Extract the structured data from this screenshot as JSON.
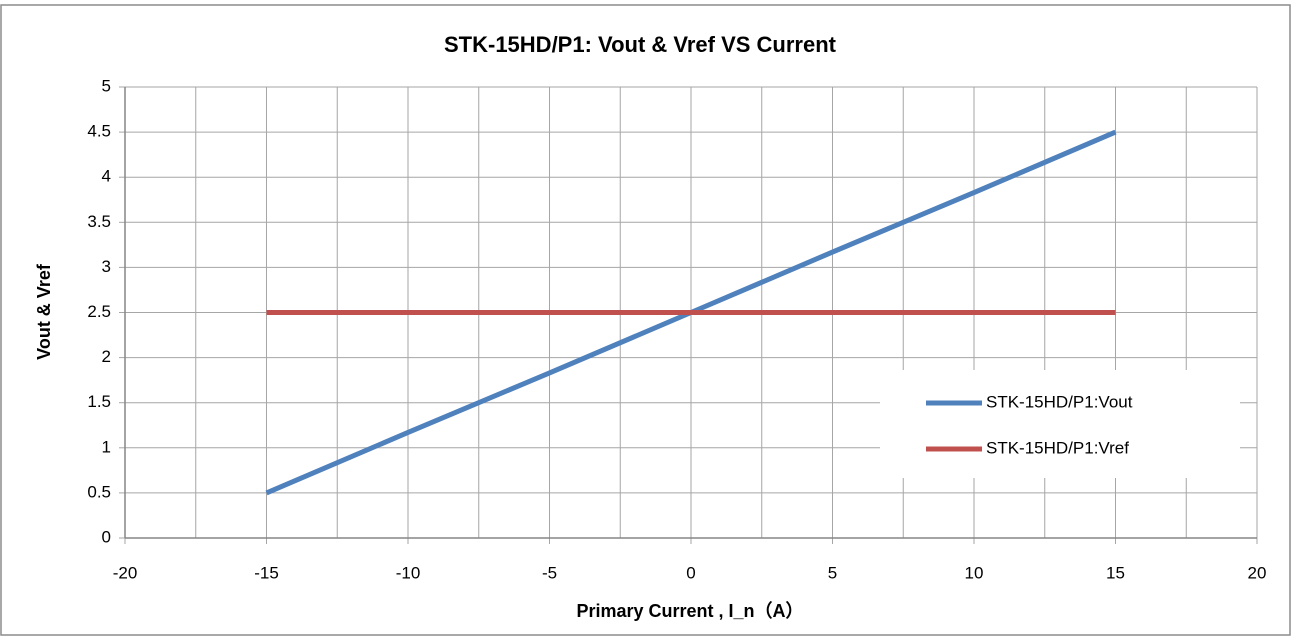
{
  "chart_data": {
    "type": "line",
    "title": "STK-15HD/P1: Vout & Vref VS Current",
    "xlabel": "Primary Current , I_n（A）",
    "ylabel": "Vout & Vref",
    "x": [
      -15,
      -10,
      -5,
      0,
      5,
      10,
      15
    ],
    "series": [
      {
        "name": "STK-15HD/P1:Vout",
        "color": "#4f81bd",
        "values": [
          0.5,
          1.17,
          1.83,
          2.5,
          3.17,
          3.83,
          4.5
        ]
      },
      {
        "name": "STK-15HD/P1:Vref",
        "color": "#c0504d",
        "values": [
          2.5,
          2.5,
          2.5,
          2.5,
          2.5,
          2.5,
          2.5
        ]
      }
    ],
    "xlim": [
      -20,
      20
    ],
    "xticks": [
      -20,
      -15,
      -10,
      -5,
      0,
      5,
      10,
      15,
      20
    ],
    "xminorticks": [
      -17.5,
      -12.5,
      -7.5,
      -2.5,
      2.5,
      7.5,
      12.5,
      17.5
    ],
    "ylim": [
      0,
      5
    ],
    "yticks": [
      0,
      0.5,
      1,
      1.5,
      2,
      2.5,
      3,
      3.5,
      4,
      4.5,
      5
    ],
    "grid": true,
    "legend": "right"
  }
}
